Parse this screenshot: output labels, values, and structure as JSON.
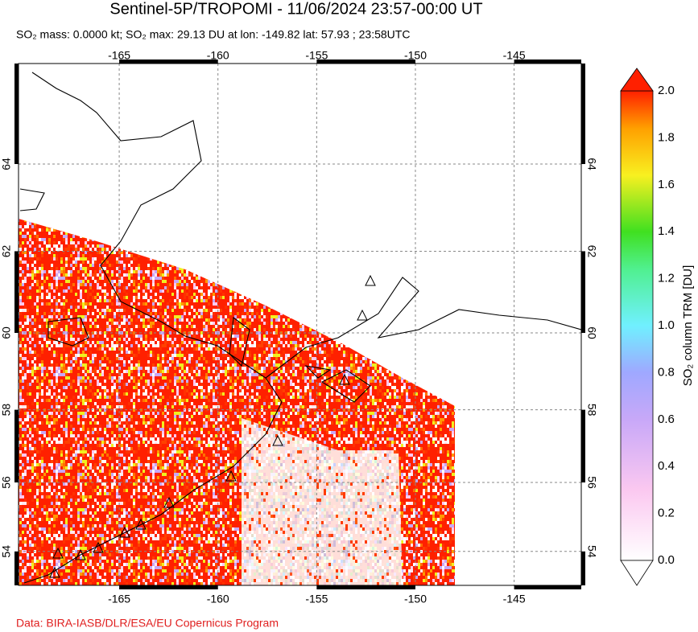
{
  "header": {
    "title": "Sentinel-5P/TROPOMI - 11/06/2024 23:57-00:00 UT",
    "subtitle": "SO₂ mass: 0.0000 kt; SO₂ max: 29.13 DU at lon: -149.82 lat: 57.93 ; 23:58UTC"
  },
  "map": {
    "projection": "mercator",
    "grid": true,
    "xlim": [
      -170.1,
      -141.6
    ],
    "ylim": [
      52.98,
      66.14
    ],
    "xticks": [
      -165,
      -160,
      -155,
      -150,
      -145
    ],
    "yticks": [
      54,
      56,
      58,
      60,
      62,
      64
    ]
  },
  "colorbar": {
    "label": "SO₂ column TRM [DU]",
    "lim": [
      0,
      2
    ],
    "ticks": [
      {
        "value": 0,
        "label": "0.0"
      },
      0.2,
      0.4,
      0.6,
      0.8,
      {
        "value": 1,
        "label": "1.0"
      },
      1.2,
      1.4,
      1.6,
      1.8,
      {
        "value": 2,
        "label": "2.0"
      }
    ]
  },
  "footer": "Data: BIRA-IASB/DLR/ESA/EU Copernicus Program"
}
